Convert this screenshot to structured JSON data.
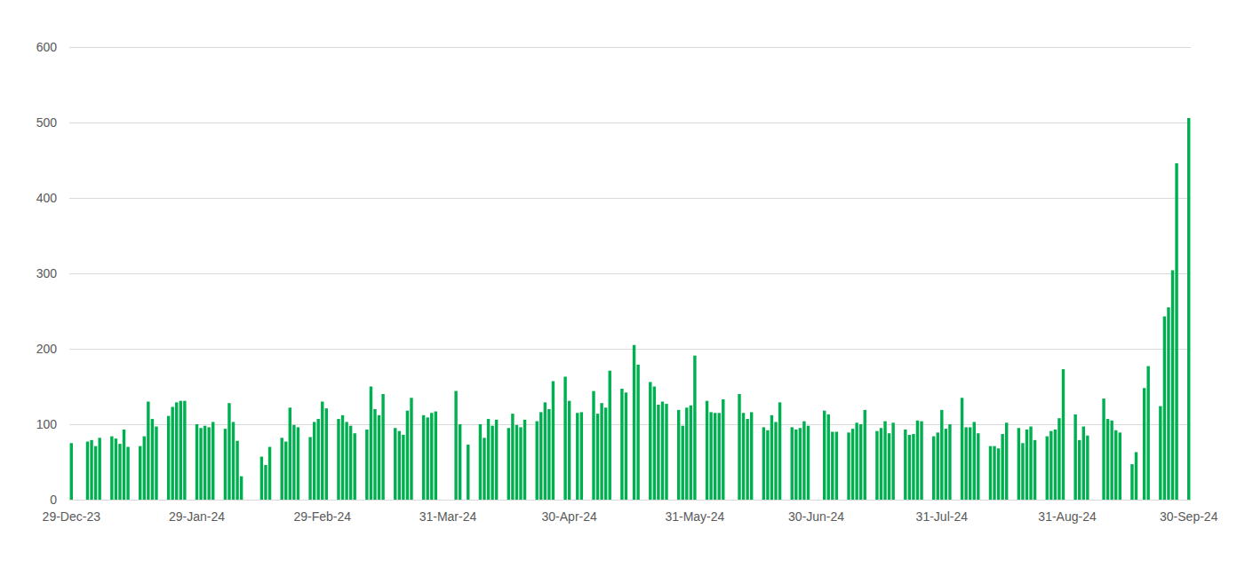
{
  "chart_data": {
    "type": "bar",
    "categories": [
      "29-Dec-23",
      null,
      null,
      null,
      null,
      null,
      null,
      null,
      null,
      null,
      null,
      null,
      null,
      null,
      null,
      null,
      null,
      null,
      null,
      null,
      null,
      null,
      null,
      null,
      null,
      null,
      null,
      null,
      null,
      null,
      null,
      "29-Jan-24",
      null,
      null,
      null,
      null,
      null,
      null,
      null,
      null,
      null,
      null,
      null,
      null,
      null,
      null,
      null,
      null,
      null,
      null,
      null,
      null,
      null,
      null,
      null,
      null,
      null,
      null,
      null,
      null,
      null,
      null,
      "29-Feb-24",
      null,
      null,
      null,
      null,
      null,
      null,
      null,
      null,
      null,
      null,
      null,
      null,
      null,
      null,
      null,
      null,
      null,
      null,
      null,
      null,
      null,
      null,
      null,
      null,
      null,
      null,
      null,
      null,
      null,
      null,
      "31-Mar-24",
      null,
      null,
      null,
      null,
      null,
      null,
      null,
      null,
      null,
      null,
      null,
      null,
      null,
      null,
      null,
      null,
      null,
      null,
      null,
      null,
      null,
      null,
      null,
      null,
      null,
      null,
      null,
      null,
      null,
      "30-Apr-24",
      null,
      null,
      null,
      null,
      null,
      null,
      null,
      null,
      null,
      null,
      null,
      null,
      null,
      null,
      null,
      null,
      null,
      null,
      null,
      null,
      null,
      null,
      null,
      null,
      null,
      null,
      null,
      null,
      null,
      null,
      "31-May-24",
      null,
      null,
      null,
      null,
      null,
      null,
      null,
      null,
      null,
      null,
      null,
      null,
      null,
      null,
      null,
      null,
      null,
      null,
      null,
      null,
      null,
      null,
      null,
      null,
      null,
      null,
      null,
      null,
      null,
      "30-Jun-24",
      null,
      null,
      null,
      null,
      null,
      null,
      null,
      null,
      null,
      null,
      null,
      null,
      null,
      null,
      null,
      null,
      null,
      null,
      null,
      null,
      null,
      null,
      null,
      null,
      null,
      null,
      null,
      null,
      null,
      null,
      "31-Jul-24",
      null,
      null,
      null,
      null,
      null,
      null,
      null,
      null,
      null,
      null,
      null,
      null,
      null,
      null,
      null,
      null,
      null,
      null,
      null,
      null,
      null,
      null,
      null,
      null,
      null,
      null,
      null,
      null,
      null,
      null,
      "31-Aug-24",
      null,
      null,
      null,
      null,
      null,
      null,
      null,
      null,
      null,
      null,
      null,
      null,
      null,
      null,
      null,
      null,
      null,
      null,
      null,
      null,
      null,
      null,
      null,
      null,
      null,
      null,
      null,
      null,
      null,
      "30-Sep-24"
    ],
    "values": [
      75,
      null,
      null,
      null,
      77,
      79,
      71,
      82,
      null,
      null,
      84,
      81,
      74,
      93,
      70,
      null,
      null,
      71,
      84,
      130,
      107,
      97,
      null,
      null,
      111,
      123,
      129,
      131,
      131,
      null,
      null,
      100,
      95,
      98,
      96,
      103,
      null,
      null,
      94,
      128,
      103,
      78,
      31,
      null,
      null,
      null,
      null,
      57,
      46,
      70,
      null,
      null,
      82,
      77,
      122,
      99,
      96,
      null,
      null,
      83,
      103,
      107,
      130,
      121,
      null,
      null,
      107,
      112,
      103,
      98,
      88,
      null,
      null,
      93,
      150,
      120,
      112,
      140,
      null,
      null,
      95,
      91,
      86,
      118,
      135,
      null,
      null,
      112,
      109,
      115,
      117,
      null,
      null,
      null,
      null,
      144,
      100,
      null,
      73,
      null,
      null,
      100,
      82,
      107,
      98,
      106,
      null,
      null,
      95,
      114,
      99,
      96,
      106,
      null,
      null,
      104,
      116,
      129,
      120,
      157,
      null,
      null,
      163,
      131,
      null,
      115,
      116,
      null,
      null,
      144,
      114,
      128,
      122,
      171,
      null,
      null,
      147,
      142,
      null,
      205,
      179,
      null,
      null,
      156,
      150,
      126,
      130,
      127,
      null,
      null,
      119,
      98,
      122,
      125,
      191,
      null,
      null,
      131,
      116,
      115,
      115,
      133,
      null,
      null,
      null,
      140,
      115,
      107,
      116,
      null,
      null,
      96,
      92,
      112,
      103,
      129,
      null,
      null,
      96,
      93,
      95,
      104,
      98,
      null,
      null,
      null,
      118,
      113,
      90,
      90,
      null,
      null,
      89,
      94,
      102,
      100,
      119,
      null,
      null,
      91,
      95,
      104,
      88,
      102,
      null,
      null,
      93,
      86,
      87,
      105,
      104,
      null,
      null,
      84,
      89,
      119,
      94,
      100,
      null,
      null,
      135,
      96,
      96,
      103,
      88,
      null,
      null,
      71,
      71,
      68,
      87,
      102,
      null,
      null,
      95,
      75,
      93,
      97,
      79,
      null,
      null,
      84,
      91,
      93,
      108,
      173,
      null,
      null,
      113,
      79,
      97,
      85,
      null,
      null,
      null,
      134,
      107,
      105,
      92,
      89,
      null,
      null,
      47,
      63,
      null,
      148,
      177,
      null,
      null,
      124,
      243,
      255,
      304,
      446,
      null,
      null,
      506
    ],
    "color": "#00b050",
    "ylim": [
      0,
      600
    ],
    "yticks": [
      0,
      100,
      200,
      300,
      400,
      500,
      600
    ],
    "grid": true
  }
}
